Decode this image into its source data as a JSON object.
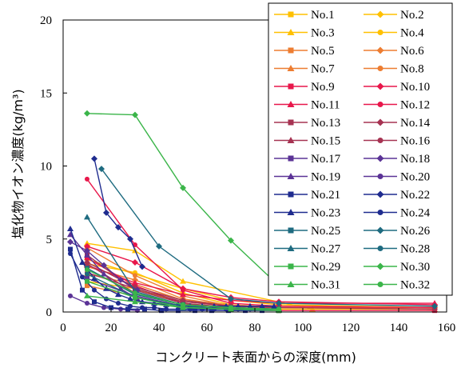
{
  "chart_data": {
    "type": "line",
    "xlabel": "コンクリート表面からの深度(mm)",
    "ylabel": "塩化物イオン濃度(kg/m³)",
    "xlim": [
      0,
      160
    ],
    "ylim": [
      0,
      20
    ],
    "xticks": [
      0,
      20,
      40,
      60,
      80,
      100,
      120,
      140,
      160
    ],
    "yticks": [
      0,
      5,
      10,
      15,
      20
    ],
    "grid": false,
    "legend_placement": "top-right",
    "series": [
      {
        "name": "No.1",
        "color": "#FFC000",
        "marker": "square",
        "x": [
          10,
          30,
          50,
          70,
          90,
          155
        ],
        "y": [
          2.1,
          1.6,
          0.6,
          0.3,
          0.2,
          0.2
        ]
      },
      {
        "name": "No.2",
        "color": "#FFC000",
        "marker": "diamond",
        "x": [
          10,
          30,
          50,
          70,
          90,
          155
        ],
        "y": [
          3.6,
          2.6,
          1.6,
          0.8,
          0.5,
          0.3
        ]
      },
      {
        "name": "No.3",
        "color": "#FFC000",
        "marker": "triangle",
        "x": [
          10,
          30,
          50,
          104
        ],
        "y": [
          4.7,
          4.2,
          2.1,
          0.2
        ]
      },
      {
        "name": "No.4",
        "color": "#FFC000",
        "marker": "circle",
        "x": [
          10,
          30,
          50,
          70,
          90
        ],
        "y": [
          3.3,
          2.7,
          1.3,
          0.5,
          0.3
        ]
      },
      {
        "name": "No.5",
        "color": "#ED7D31",
        "marker": "square",
        "x": [
          10,
          30,
          50,
          70,
          90
        ],
        "y": [
          1.8,
          1.1,
          0.4,
          0.2,
          0.2
        ]
      },
      {
        "name": "No.6",
        "color": "#ED7D31",
        "marker": "diamond",
        "x": [
          10,
          30,
          50,
          70,
          90,
          155
        ],
        "y": [
          3.1,
          2.2,
          0.9,
          0.4,
          0.3,
          0.3
        ]
      },
      {
        "name": "No.7",
        "color": "#ED7D31",
        "marker": "triangle",
        "x": [
          10,
          30,
          50,
          70,
          90,
          155
        ],
        "y": [
          2.6,
          1.9,
          0.8,
          0.5,
          0.3,
          0.2
        ]
      },
      {
        "name": "No.8",
        "color": "#ED7D31",
        "marker": "circle",
        "x": [
          10,
          30,
          50,
          70,
          90
        ],
        "y": [
          4.4,
          2.5,
          1.1,
          0.4,
          0.3
        ]
      },
      {
        "name": "No.9",
        "color": "#E8174B",
        "marker": "square",
        "x": [
          10,
          30,
          50,
          70,
          90,
          155
        ],
        "y": [
          3.7,
          1.8,
          0.6,
          0.2,
          0.1,
          0.1
        ]
      },
      {
        "name": "No.10",
        "color": "#E8174B",
        "marker": "diamond",
        "x": [
          10,
          30,
          50,
          70,
          90,
          155
        ],
        "y": [
          4.5,
          3.4,
          1.6,
          1.0,
          0.7,
          0.5
        ]
      },
      {
        "name": "No.11",
        "color": "#E8174B",
        "marker": "triangle",
        "x": [
          10,
          30,
          50,
          70,
          90,
          155
        ],
        "y": [
          3.2,
          2.0,
          1.2,
          0.8,
          0.6,
          0.6
        ]
      },
      {
        "name": "No.12",
        "color": "#E8174B",
        "marker": "circle",
        "x": [
          10,
          30,
          50,
          70,
          90,
          155
        ],
        "y": [
          9.1,
          4.6,
          1.5,
          0.6,
          0.4,
          0.3
        ]
      },
      {
        "name": "No.13",
        "color": "#A63352",
        "marker": "square",
        "x": [
          10,
          30,
          50,
          70,
          90
        ],
        "y": [
          3.9,
          1.5,
          0.6,
          0.3,
          0.2
        ]
      },
      {
        "name": "No.14",
        "color": "#A63352",
        "marker": "diamond",
        "x": [
          10,
          30,
          50,
          70,
          90,
          155
        ],
        "y": [
          3.4,
          1.7,
          0.8,
          0.4,
          0.3,
          0.2
        ]
      },
      {
        "name": "No.15",
        "color": "#A63352",
        "marker": "triangle",
        "x": [
          10,
          30,
          50,
          70,
          90
        ],
        "y": [
          3.3,
          1.3,
          0.5,
          0.3,
          0.2
        ]
      },
      {
        "name": "No.16",
        "color": "#A63352",
        "marker": "circle",
        "x": [
          10,
          30,
          50,
          70,
          90
        ],
        "y": [
          2.7,
          1.6,
          0.7,
          0.4,
          0.3
        ]
      },
      {
        "name": "No.17",
        "color": "#5B3396",
        "marker": "square",
        "x": [
          10,
          30,
          50,
          70
        ],
        "y": [
          2.3,
          1.1,
          0.4,
          0.2
        ]
      },
      {
        "name": "No.18",
        "color": "#5B3396",
        "marker": "diamond",
        "x": [
          3,
          10,
          17,
          24,
          31
        ],
        "y": [
          4.8,
          4.2,
          3.2,
          2.2,
          1.5
        ]
      },
      {
        "name": "No.19",
        "color": "#5B3396",
        "marker": "triangle",
        "x": [
          3,
          10,
          17,
          24,
          31
        ],
        "y": [
          5.3,
          3.9,
          2.6,
          1.6,
          0.9
        ]
      },
      {
        "name": "No.20",
        "color": "#5B3396",
        "marker": "circle",
        "x": [
          3,
          10,
          17,
          24,
          31
        ],
        "y": [
          1.1,
          0.6,
          0.3,
          0.2,
          0.1
        ]
      },
      {
        "name": "No.21",
        "color": "#1F2C8F",
        "marker": "square",
        "x": [
          3,
          8,
          13,
          20,
          27,
          34,
          41,
          48,
          55,
          62,
          69,
          76,
          83,
          90
        ],
        "y": [
          4.3,
          1.5,
          0.7,
          0.3,
          0.2,
          0.2,
          0.1,
          0.1,
          0.1,
          0.1,
          0.1,
          0.1,
          0.1,
          0.1
        ]
      },
      {
        "name": "No.22",
        "color": "#1F2C8F",
        "marker": "diamond",
        "x": [
          13,
          18,
          23,
          28,
          33
        ],
        "y": [
          10.5,
          6.8,
          5.8,
          5.0,
          3.1
        ]
      },
      {
        "name": "No.23",
        "color": "#1F2C8F",
        "marker": "triangle",
        "x": [
          3,
          8,
          13,
          18,
          23,
          28,
          33,
          38,
          43,
          48,
          53,
          58,
          63,
          68,
          73,
          78,
          83,
          88
        ],
        "y": [
          5.7,
          3.4,
          2.3,
          1.6,
          1.2,
          0.9,
          0.7,
          0.6,
          0.5,
          0.5,
          0.4,
          0.4,
          0.4,
          0.4,
          0.4,
          0.4,
          0.4,
          0.4
        ]
      },
      {
        "name": "No.24",
        "color": "#1F2C8F",
        "marker": "circle",
        "x": [
          3,
          8,
          13,
          18,
          23,
          28,
          33,
          38,
          43,
          48,
          53,
          58,
          63,
          68,
          73,
          78,
          83
        ],
        "y": [
          4.0,
          2.4,
          1.5,
          0.9,
          0.6,
          0.4,
          0.3,
          0.3,
          0.2,
          0.2,
          0.2,
          0.2,
          0.2,
          0.2,
          0.2,
          0.2,
          0.2
        ]
      },
      {
        "name": "No.25",
        "color": "#1E6B80",
        "marker": "square",
        "x": [
          10,
          30,
          50,
          70,
          90
        ],
        "y": [
          3.0,
          1.2,
          0.5,
          0.3,
          0.2
        ]
      },
      {
        "name": "No.26",
        "color": "#1E6B80",
        "marker": "diamond",
        "x": [
          16,
          40,
          70,
          90,
          155
        ],
        "y": [
          9.8,
          4.5,
          0.9,
          0.6,
          0.4
        ]
      },
      {
        "name": "No.27",
        "color": "#1E6B80",
        "marker": "triangle",
        "x": [
          10,
          30,
          50,
          70,
          90
        ],
        "y": [
          6.5,
          1.4,
          0.5,
          0.3,
          0.2
        ]
      },
      {
        "name": "No.28",
        "color": "#1E6B80",
        "marker": "circle",
        "x": [
          10,
          30,
          50,
          70,
          90
        ],
        "y": [
          2.6,
          1.0,
          0.4,
          0.2,
          0.2
        ]
      },
      {
        "name": "No.29",
        "color": "#3BB54A",
        "marker": "square",
        "x": [
          10,
          30,
          50,
          70,
          90
        ],
        "y": [
          2.1,
          1.0,
          0.3,
          0.2,
          0.1
        ]
      },
      {
        "name": "No.30",
        "color": "#3BB54A",
        "marker": "diamond",
        "x": [
          10,
          30,
          50,
          70,
          90
        ],
        "y": [
          13.6,
          13.5,
          8.5,
          4.9,
          1.8
        ]
      },
      {
        "name": "No.31",
        "color": "#3BB54A",
        "marker": "triangle",
        "x": [
          10,
          30,
          50,
          70,
          90
        ],
        "y": [
          1.1,
          0.7,
          0.3,
          0.2,
          0.1
        ]
      },
      {
        "name": "No.32",
        "color": "#3BB54A",
        "marker": "circle",
        "x": [
          10,
          30,
          50,
          70,
          90
        ],
        "y": [
          2.9,
          1.3,
          0.5,
          0.3,
          0.2
        ]
      }
    ]
  }
}
